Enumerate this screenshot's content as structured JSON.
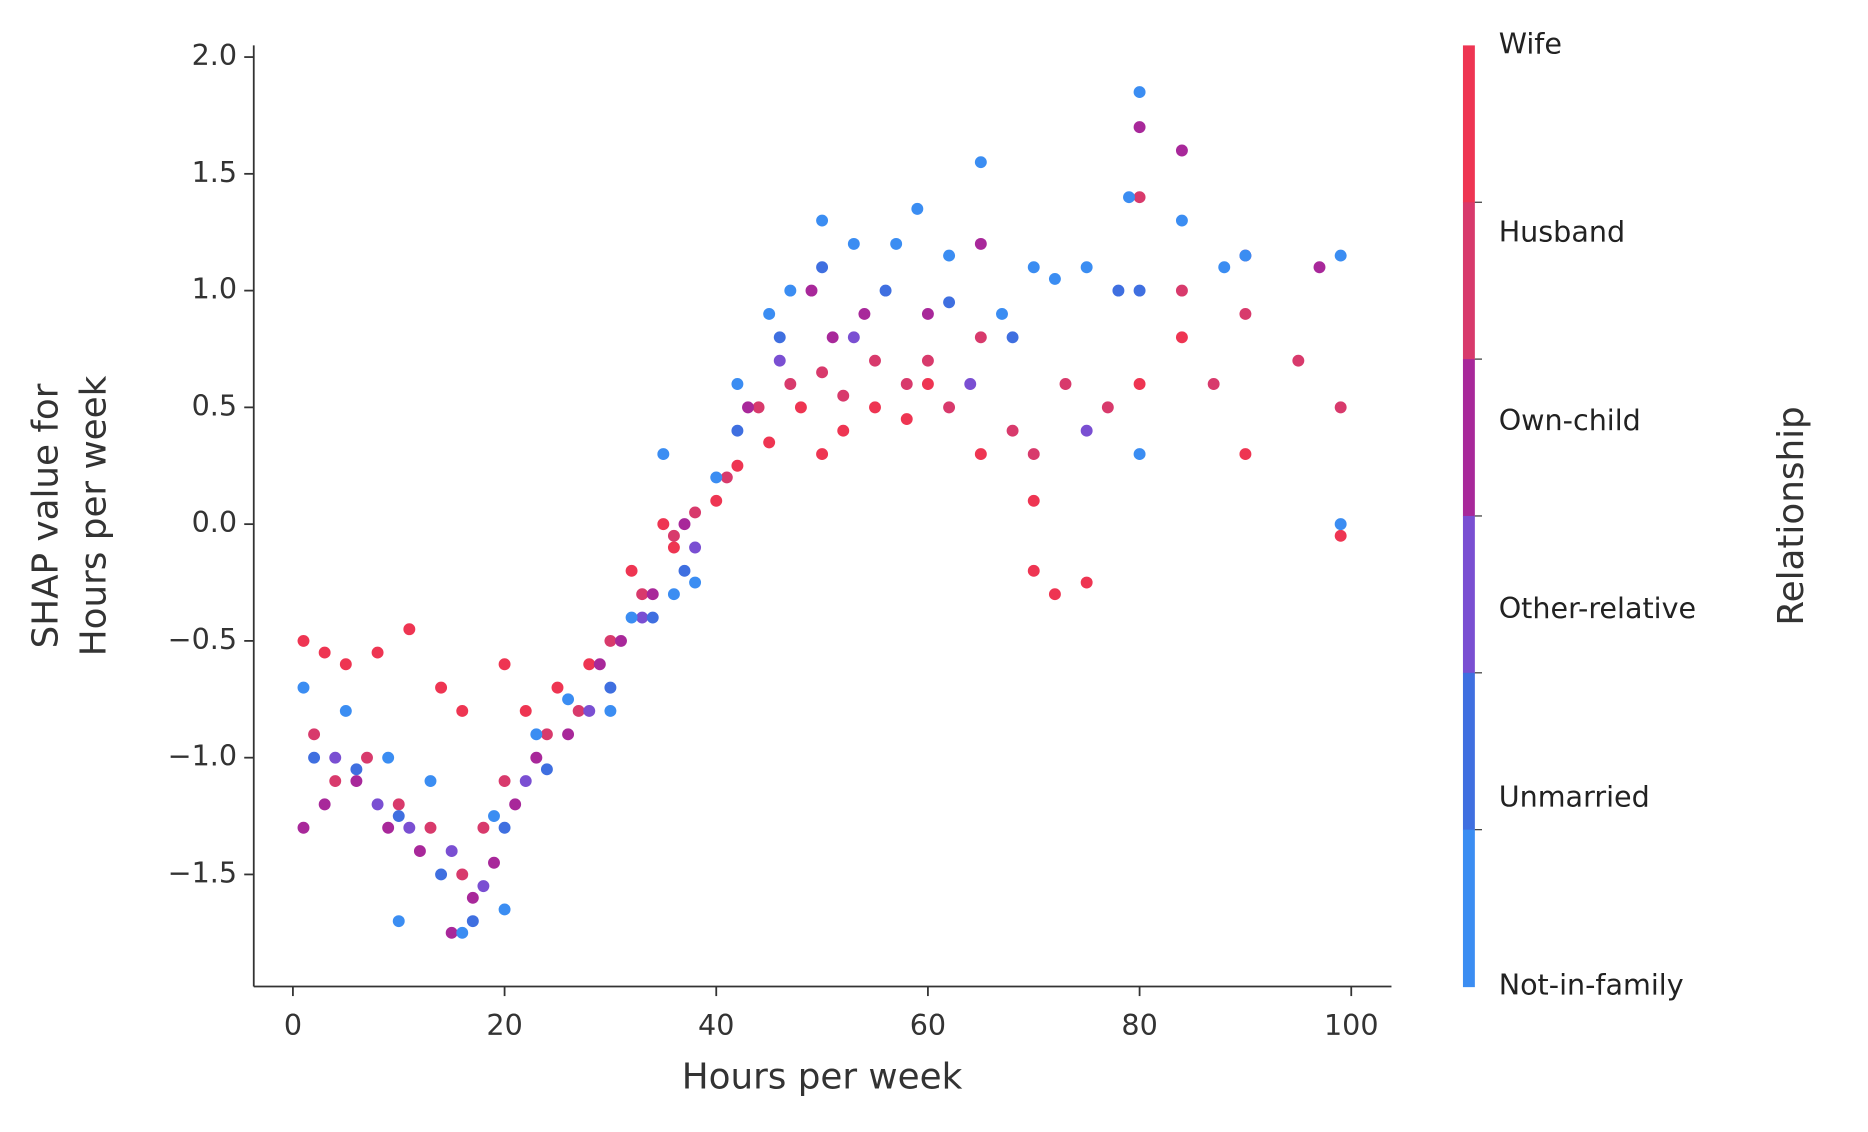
{
  "chart_data": {
    "type": "scatter",
    "xlabel": "Hours per week",
    "ylabel": [
      "SHAP value for",
      "Hours per week"
    ],
    "colorbar_label": "Relationship",
    "xlim": [
      -3.7,
      103.8
    ],
    "ylim": [
      -1.98,
      2.05
    ],
    "xticks": [
      0,
      20,
      40,
      60,
      80,
      100
    ],
    "yticks": [
      {
        "value": -1.5,
        "label": "−1.5"
      },
      {
        "value": -1.0,
        "label": "−1.0"
      },
      {
        "value": -0.5,
        "label": "−0.5"
      },
      {
        "value": 0.0,
        "label": "0.0"
      },
      0.5,
      {
        "value": 1.0,
        "label": "1.0"
      },
      1.5,
      {
        "value": 2.0,
        "label": "2.0"
      }
    ],
    "series": [
      {
        "name": "Wife",
        "color": "#ee3552",
        "x": [
          1,
          3,
          5,
          8,
          11,
          14,
          16,
          20,
          22,
          25,
          28,
          32,
          35,
          36,
          40,
          42,
          45,
          48,
          50,
          52,
          55,
          58,
          60,
          65,
          70,
          70,
          72,
          75,
          80,
          84,
          90,
          99
        ],
        "values": [
          -0.5,
          -0.55,
          -0.6,
          -0.55,
          -0.45,
          -0.7,
          -0.8,
          -0.6,
          -0.8,
          -0.7,
          -0.6,
          -0.2,
          0.0,
          -0.1,
          0.1,
          0.25,
          0.35,
          0.5,
          0.3,
          0.4,
          0.5,
          0.45,
          0.6,
          0.3,
          -0.2,
          0.1,
          -0.3,
          -0.25,
          0.6,
          0.8,
          0.3,
          -0.05
        ]
      },
      {
        "name": "Husband",
        "color": "#d83a6c",
        "x": [
          2,
          4,
          7,
          10,
          13,
          16,
          18,
          20,
          24,
          27,
          30,
          33,
          36,
          38,
          41,
          44,
          47,
          50,
          52,
          55,
          58,
          60,
          62,
          65,
          68,
          70,
          73,
          77,
          80,
          84,
          87,
          90,
          95,
          99
        ],
        "values": [
          -0.9,
          -1.1,
          -1.0,
          -1.2,
          -1.3,
          -1.5,
          -1.3,
          -1.1,
          -0.9,
          -0.8,
          -0.5,
          -0.3,
          -0.05,
          0.05,
          0.2,
          0.5,
          0.6,
          0.65,
          0.55,
          0.7,
          0.6,
          0.7,
          0.5,
          0.8,
          0.4,
          0.3,
          0.6,
          0.5,
          1.4,
          1.0,
          0.6,
          0.9,
          0.7,
          0.5
        ]
      },
      {
        "name": "Own-child",
        "color": "#a8289a",
        "x": [
          1,
          3,
          6,
          9,
          12,
          15,
          17,
          19,
          21,
          23,
          26,
          29,
          31,
          34,
          37,
          43,
          49,
          51,
          54,
          60,
          65,
          80,
          84,
          90,
          97
        ],
        "values": [
          -1.3,
          -1.2,
          -1.1,
          -1.3,
          -1.4,
          -1.75,
          -1.6,
          -1.45,
          -1.2,
          -1.0,
          -0.9,
          -0.6,
          -0.5,
          -0.3,
          0.0,
          0.5,
          1.0,
          0.8,
          0.9,
          0.9,
          1.2,
          1.7,
          1.6,
          1.15,
          1.1
        ]
      },
      {
        "name": "Other-relative",
        "color": "#7a4fd2",
        "x": [
          4,
          8,
          11,
          15,
          18,
          22,
          28,
          33,
          38,
          46,
          53,
          64,
          75
        ],
        "values": [
          -1.0,
          -1.2,
          -1.3,
          -1.4,
          -1.55,
          -1.1,
          -0.8,
          -0.4,
          -0.1,
          0.7,
          0.8,
          0.6,
          0.4
        ]
      },
      {
        "name": "Unmarried",
        "color": "#3f6fe0",
        "x": [
          2,
          6,
          10,
          14,
          17,
          20,
          24,
          30,
          34,
          37,
          42,
          46,
          50,
          56,
          62,
          68,
          78,
          80
        ],
        "values": [
          -1.0,
          -1.05,
          -1.25,
          -1.5,
          -1.7,
          -1.3,
          -1.05,
          -0.7,
          -0.4,
          -0.2,
          0.4,
          0.8,
          1.1,
          1.0,
          0.95,
          0.8,
          1.0,
          1.0
        ]
      },
      {
        "name": "Not-in-family",
        "color": "#3b8df2",
        "x": [
          1,
          5,
          9,
          10,
          13,
          16,
          19,
          20,
          23,
          26,
          30,
          32,
          35,
          36,
          38,
          40,
          42,
          45,
          47,
          50,
          53,
          57,
          59,
          62,
          65,
          67,
          70,
          72,
          75,
          79,
          80,
          80,
          84,
          88,
          90,
          99,
          99
        ],
        "values": [
          -0.7,
          -0.8,
          -1.0,
          -1.7,
          -1.1,
          -1.75,
          -1.25,
          -1.65,
          -0.9,
          -0.75,
          -0.8,
          -0.4,
          0.3,
          -0.3,
          -0.25,
          0.2,
          0.6,
          0.9,
          1.0,
          1.3,
          1.2,
          1.2,
          1.35,
          1.15,
          1.55,
          0.9,
          1.1,
          1.05,
          1.1,
          1.4,
          1.85,
          0.3,
          1.3,
          1.1,
          1.15,
          1.15,
          0.0
        ]
      }
    ]
  }
}
